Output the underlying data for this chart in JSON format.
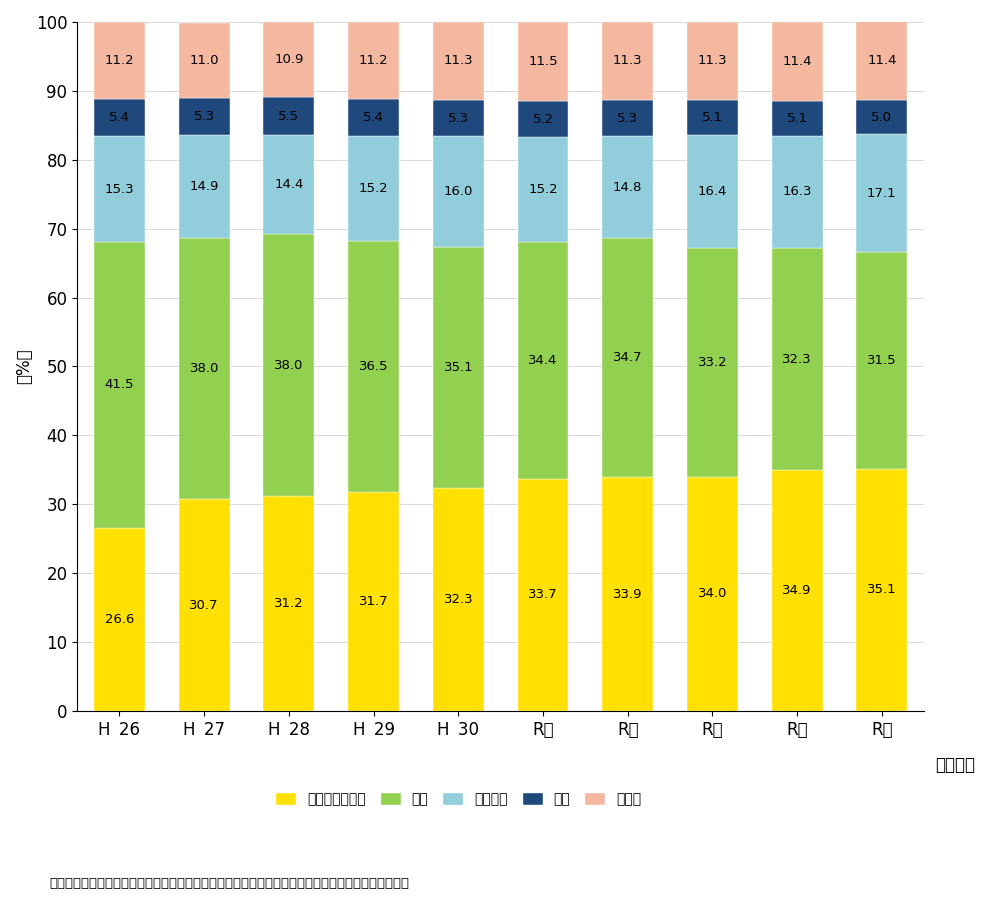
{
  "categories": [
    "H26",
    "H27",
    "H28",
    "H29",
    "H30",
    "R元",
    "R２",
    "R３",
    "R４",
    "R５"
  ],
  "series": {
    "現金・預貯金等": [
      26.6,
      30.7,
      31.2,
      31.7,
      32.3,
      33.7,
      33.9,
      34.0,
      34.9,
      35.1
    ],
    "土地": [
      41.5,
      38.0,
      38.0,
      36.5,
      35.1,
      34.4,
      34.7,
      33.2,
      32.3,
      31.5
    ],
    "有価証券": [
      15.3,
      14.9,
      14.4,
      15.2,
      16.0,
      15.2,
      14.8,
      16.4,
      16.3,
      17.1
    ],
    "家屋": [
      5.4,
      5.3,
      5.5,
      5.4,
      5.3,
      5.2,
      5.3,
      5.1,
      5.1,
      5.0
    ],
    "その他": [
      11.2,
      11.0,
      10.9,
      11.2,
      11.3,
      11.5,
      11.3,
      11.3,
      11.4,
      11.4
    ]
  },
  "colors": {
    "現金・預貯金等": "#FFE000",
    "土地": "#92D050",
    "有価証券": "#92CDDC",
    "家屋": "#1F497D",
    "その他": "#F4B8A0"
  },
  "xlabel": "（年分）",
  "ylabel": "（%）",
  "ylim": [
    0,
    100
  ],
  "yticks": [
    0,
    10,
    20,
    30,
    40,
    50,
    60,
    70,
    80,
    90,
    100
  ],
  "note": "（注）上記の計数は、相続税額のある申告書（修正申告書を除く。）データに基づき作成している。",
  "background_color": "#FFFFFF",
  "bar_width": 0.6,
  "title_fontsize": 12,
  "tick_fontsize": 12,
  "label_fontsize": 10
}
